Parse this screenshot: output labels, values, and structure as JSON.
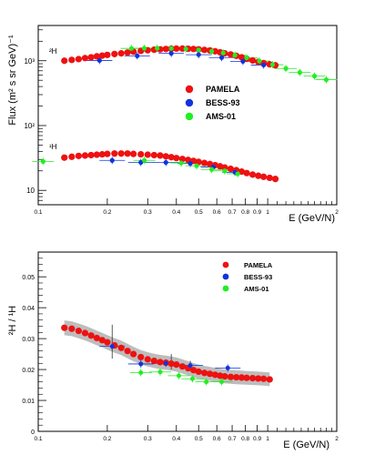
{
  "chart_data": [
    {
      "type": "scatter",
      "xlabel": "E (GeV/N)",
      "ylabel": "Flux (m² s sr GeV)⁻¹",
      "xscale": "log",
      "yscale": "log",
      "xlim": [
        0.1,
        2
      ],
      "ylim": [
        6,
        3500
      ],
      "x_tick_labels": [
        "0.1",
        "0.2",
        "0.3",
        "0.4",
        "0.5",
        "0.6",
        "0.7",
        "0.8",
        "0.9",
        "1",
        "2"
      ],
      "y_tick_labels": [
        "10",
        "10²",
        "10³"
      ],
      "legend_position": "center-right",
      "annotations": [
        "²H",
        "¹H"
      ],
      "series": [
        {
          "name": "PAMELA",
          "color": "#ee1111",
          "x": [
            0.13,
            0.14,
            0.15,
            0.16,
            0.17,
            0.18,
            0.19,
            0.2,
            0.215,
            0.23,
            0.245,
            0.26,
            0.28,
            0.3,
            0.32,
            0.34,
            0.36,
            0.38,
            0.4,
            0.425,
            0.45,
            0.475,
            0.5,
            0.53,
            0.56,
            0.59,
            0.62,
            0.65,
            0.69,
            0.73,
            0.77,
            0.81,
            0.86,
            0.91,
            0.96,
            1.02,
            1.08
          ],
          "y": [
            1000,
            1030,
            1060,
            1100,
            1130,
            1170,
            1200,
            1230,
            1270,
            1300,
            1340,
            1380,
            1420,
            1450,
            1480,
            1500,
            1520,
            1530,
            1540,
            1540,
            1530,
            1520,
            1500,
            1470,
            1440,
            1400,
            1350,
            1300,
            1250,
            1190,
            1130,
            1070,
            1010,
            960,
            920,
            880,
            850
          ]
        },
        {
          "name": "BESS-93",
          "color": "#1133dd",
          "x": [
            0.185,
            0.27,
            0.38,
            0.5,
            0.63,
            0.78,
            0.96
          ],
          "y": [
            1010,
            1190,
            1300,
            1240,
            1120,
            980,
            860
          ]
        },
        {
          "name": "AMS-01",
          "color": "#22ee22",
          "x": [
            0.255,
            0.29,
            0.33,
            0.38,
            0.44,
            0.5,
            0.57,
            0.64,
            0.72,
            0.81,
            0.92,
            1.05,
            1.2,
            1.38,
            1.6,
            1.8
          ],
          "y": [
            1550,
            1560,
            1560,
            1550,
            1520,
            1470,
            1400,
            1320,
            1220,
            1110,
            990,
            870,
            760,
            660,
            580,
            510
          ]
        },
        {
          "name": "PAMELA",
          "color": "#ee1111",
          "x": [
            0.13,
            0.14,
            0.15,
            0.16,
            0.17,
            0.18,
            0.19,
            0.2,
            0.215,
            0.23,
            0.245,
            0.26,
            0.28,
            0.3,
            0.32,
            0.34,
            0.36,
            0.38,
            0.4,
            0.425,
            0.45,
            0.475,
            0.5,
            0.53,
            0.56,
            0.59,
            0.62,
            0.65,
            0.69,
            0.73,
            0.77,
            0.81,
            0.86,
            0.91,
            0.96,
            1.02,
            1.08
          ],
          "y": [
            32,
            33,
            34,
            34.5,
            35,
            35.5,
            36,
            36.5,
            37,
            37,
            37,
            36.5,
            36,
            35.5,
            35,
            34.5,
            33.5,
            32.5,
            31.5,
            30.5,
            29.5,
            28.5,
            27.5,
            26.5,
            25.5,
            24.5,
            23.5,
            22.5,
            21.5,
            20.5,
            19.5,
            18.5,
            17.5,
            16.8,
            16.2,
            15.6,
            15.0
          ]
        },
        {
          "name": "BESS-93",
          "color": "#1133dd",
          "x": [
            0.21,
            0.28,
            0.36,
            0.46,
            0.58,
            0.72
          ],
          "y": [
            29,
            27,
            27,
            26,
            23,
            19
          ]
        },
        {
          "name": "AMS-01",
          "color": "#22ee22",
          "x": [
            0.105,
            0.29,
            0.42,
            0.49,
            0.57,
            0.65,
            0.74
          ],
          "y": [
            28,
            29,
            26.5,
            24,
            21,
            20,
            18
          ]
        }
      ],
      "legend": [
        {
          "name": "PAMELA",
          "color": "#ee1111"
        },
        {
          "name": "BESS-93",
          "color": "#1133dd"
        },
        {
          "name": "AMS-01",
          "color": "#22ee22"
        }
      ]
    },
    {
      "type": "scatter",
      "xlabel": "E (GeV/N)",
      "ylabel": "²H / ¹H",
      "xscale": "log",
      "xlim": [
        0.1,
        2
      ],
      "ylim": [
        0,
        0.058
      ],
      "x_tick_labels": [
        "0.1",
        "0.2",
        "0.3",
        "0.4",
        "0.5",
        "0.6",
        "0.7",
        "0.8",
        "0.9",
        "1",
        "2"
      ],
      "y_tick_labels": [
        "0",
        "0.01",
        "0.02",
        "0.03",
        "0.04",
        "0.05"
      ],
      "legend_position": "top-right",
      "series": [
        {
          "name": "PAMELA",
          "color": "#ee1111",
          "x": [
            0.13,
            0.14,
            0.15,
            0.16,
            0.17,
            0.18,
            0.19,
            0.2,
            0.215,
            0.23,
            0.245,
            0.26,
            0.28,
            0.3,
            0.32,
            0.34,
            0.36,
            0.38,
            0.4,
            0.425,
            0.45,
            0.475,
            0.5,
            0.53,
            0.56,
            0.59,
            0.62,
            0.65,
            0.69,
            0.73,
            0.77,
            0.81,
            0.86,
            0.91,
            0.96,
            1.02
          ],
          "y": [
            0.0335,
            0.0332,
            0.0325,
            0.0318,
            0.031,
            0.0302,
            0.0295,
            0.0288,
            0.0278,
            0.027,
            0.026,
            0.025,
            0.024,
            0.0233,
            0.0228,
            0.0224,
            0.0222,
            0.0219,
            0.0216,
            0.021,
            0.0204,
            0.0198,
            0.0193,
            0.0189,
            0.0186,
            0.0183,
            0.018,
            0.0178,
            0.0176,
            0.0175,
            0.0174,
            0.0173,
            0.0172,
            0.0171,
            0.017,
            0.0168
          ]
        },
        {
          "name": "BESS-93",
          "color": "#1133dd",
          "x": [
            0.21,
            0.28,
            0.36,
            0.46,
            0.67
          ],
          "y": [
            0.0275,
            0.0218,
            0.022,
            0.0213,
            0.0205
          ]
        },
        {
          "name": "AMS-01",
          "color": "#22ee22",
          "x": [
            0.28,
            0.34,
            0.41,
            0.47,
            0.54,
            0.63
          ],
          "y": [
            0.019,
            0.0192,
            0.018,
            0.017,
            0.016,
            0.016
          ]
        }
      ],
      "legend": [
        {
          "name": "PAMELA",
          "color": "#ee1111"
        },
        {
          "name": "BESS-93",
          "color": "#1133dd"
        },
        {
          "name": "AMS-01",
          "color": "#22ee22"
        }
      ]
    }
  ]
}
